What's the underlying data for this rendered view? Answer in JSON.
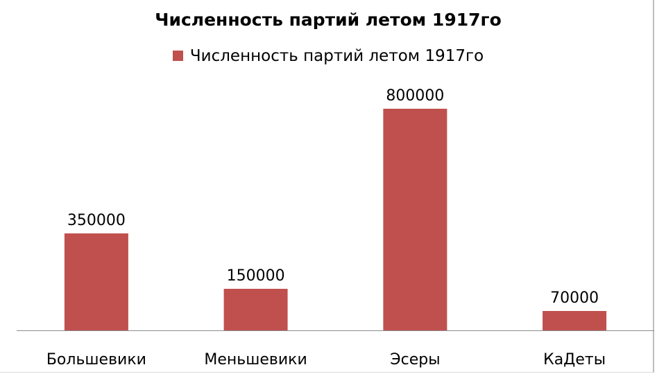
{
  "chart_data": {
    "type": "bar",
    "title": "Численность партий летом 1917го",
    "categories": [
      "Большевики",
      "Меньшевики",
      "Эсеры",
      "КаДеты"
    ],
    "series": [
      {
        "name": "Численность партий летом 1917го",
        "values": [
          350000,
          150000,
          800000,
          70000
        ]
      }
    ],
    "data_labels": [
      "350000",
      "150000",
      "800000",
      "70000"
    ],
    "xlabel": "",
    "ylabel": "",
    "ylim": [
      0,
      900000
    ],
    "grid": false,
    "legend_position": "top",
    "bar_color": "#c0504d",
    "axis_color": "#8c8c8c"
  }
}
